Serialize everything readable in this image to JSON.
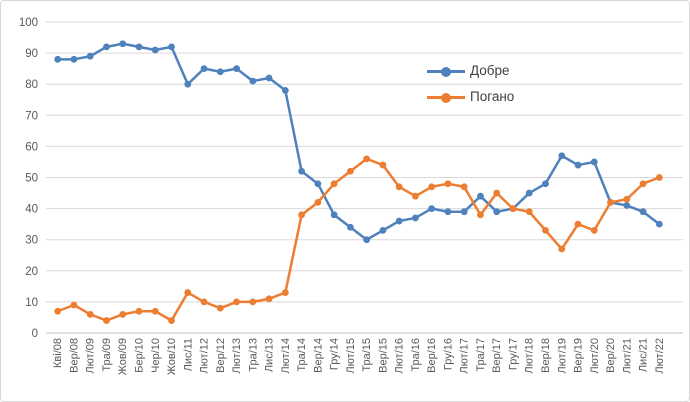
{
  "chart_data": {
    "type": "line",
    "title": "",
    "xlabel": "",
    "ylabel": "",
    "categories": [
      "Кві/08",
      "Вер/08",
      "Лют/09",
      "Тра/09",
      "Жов/09",
      "Бер/10",
      "Чер/10",
      "Жов/10",
      "Лис/11",
      "Лют/12",
      "Вер/12",
      "Лют/13",
      "Тра/13",
      "Лис/13",
      "Лют/14",
      "Тра/14",
      "Вер/14",
      "Гру/14",
      "Лют/15",
      "Тра/15",
      "Вер/15",
      "Лют/16",
      "Тра/16",
      "Вер/16",
      "Гру/16",
      "Лют/17",
      "Тра/17",
      "Вер/17",
      "Гру/17",
      "Лют/18",
      "Вер/18",
      "Лют/19",
      "Вер/19",
      "Лют/20",
      "Вер/20",
      "Лют/21",
      "Лис/21",
      "Лют/22"
    ],
    "series": [
      {
        "name": "Добре",
        "color": "#4F81BD",
        "values": [
          88,
          88,
          89,
          92,
          93,
          92,
          91,
          92,
          80,
          85,
          84,
          85,
          81,
          82,
          78,
          52,
          48,
          38,
          34,
          30,
          33,
          36,
          37,
          40,
          39,
          39,
          44,
          39,
          40,
          45,
          48,
          57,
          54,
          55,
          42,
          41,
          39,
          35
        ]
      },
      {
        "name": "Погано",
        "color": "#ED7D31",
        "values": [
          7,
          9,
          6,
          4,
          6,
          7,
          7,
          4,
          13,
          10,
          8,
          10,
          10,
          11,
          13,
          38,
          42,
          48,
          52,
          56,
          54,
          47,
          44,
          47,
          48,
          47,
          38,
          45,
          40,
          39,
          33,
          27,
          35,
          33,
          42,
          43,
          48,
          50
        ]
      }
    ],
    "ylim": [
      0,
      100
    ],
    "ytick_step": 10,
    "yticks": [
      0,
      10,
      20,
      30,
      40,
      50,
      60,
      70,
      80,
      90,
      100
    ],
    "grid": "horizontal",
    "legend_position": "inside-upper-right",
    "x_label_rotation": -90
  },
  "theme": {
    "gridline_color": "#d9d9d9",
    "axis_line_color": "#bfbfbf",
    "tick_label_color": "#595959",
    "legend_text_color": "#404040",
    "frame_border_color": "#d8d8d8",
    "background": "#ffffff"
  }
}
